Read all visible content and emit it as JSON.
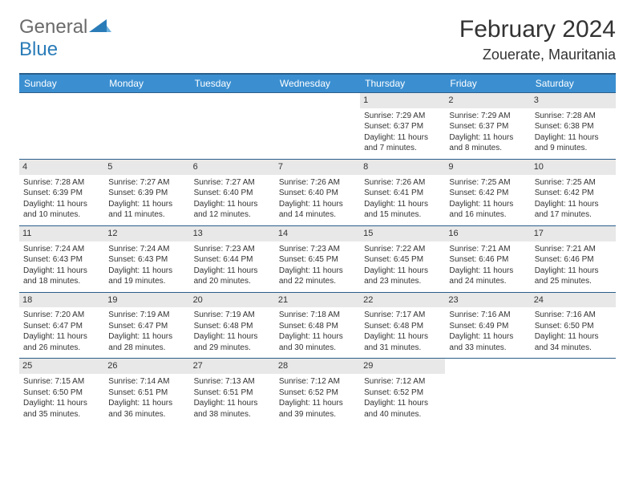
{
  "logo": {
    "general": "General",
    "blue": "Blue"
  },
  "title": "February 2024",
  "location": "Zouerate, Mauritania",
  "colors": {
    "header_bg": "#3b8fd1",
    "header_border": "#2a5e8a",
    "daynum_bg": "#e8e8e8",
    "logo_gray": "#6b6b6b",
    "logo_blue": "#2a7cb8",
    "text": "#333333",
    "bg": "#ffffff"
  },
  "weekdays": [
    "Sunday",
    "Monday",
    "Tuesday",
    "Wednesday",
    "Thursday",
    "Friday",
    "Saturday"
  ],
  "weeks": [
    [
      null,
      null,
      null,
      null,
      {
        "day": "1",
        "sunrise": "Sunrise: 7:29 AM",
        "sunset": "Sunset: 6:37 PM",
        "daylight": "Daylight: 11 hours and 7 minutes."
      },
      {
        "day": "2",
        "sunrise": "Sunrise: 7:29 AM",
        "sunset": "Sunset: 6:37 PM",
        "daylight": "Daylight: 11 hours and 8 minutes."
      },
      {
        "day": "3",
        "sunrise": "Sunrise: 7:28 AM",
        "sunset": "Sunset: 6:38 PM",
        "daylight": "Daylight: 11 hours and 9 minutes."
      }
    ],
    [
      {
        "day": "4",
        "sunrise": "Sunrise: 7:28 AM",
        "sunset": "Sunset: 6:39 PM",
        "daylight": "Daylight: 11 hours and 10 minutes."
      },
      {
        "day": "5",
        "sunrise": "Sunrise: 7:27 AM",
        "sunset": "Sunset: 6:39 PM",
        "daylight": "Daylight: 11 hours and 11 minutes."
      },
      {
        "day": "6",
        "sunrise": "Sunrise: 7:27 AM",
        "sunset": "Sunset: 6:40 PM",
        "daylight": "Daylight: 11 hours and 12 minutes."
      },
      {
        "day": "7",
        "sunrise": "Sunrise: 7:26 AM",
        "sunset": "Sunset: 6:40 PM",
        "daylight": "Daylight: 11 hours and 14 minutes."
      },
      {
        "day": "8",
        "sunrise": "Sunrise: 7:26 AM",
        "sunset": "Sunset: 6:41 PM",
        "daylight": "Daylight: 11 hours and 15 minutes."
      },
      {
        "day": "9",
        "sunrise": "Sunrise: 7:25 AM",
        "sunset": "Sunset: 6:42 PM",
        "daylight": "Daylight: 11 hours and 16 minutes."
      },
      {
        "day": "10",
        "sunrise": "Sunrise: 7:25 AM",
        "sunset": "Sunset: 6:42 PM",
        "daylight": "Daylight: 11 hours and 17 minutes."
      }
    ],
    [
      {
        "day": "11",
        "sunrise": "Sunrise: 7:24 AM",
        "sunset": "Sunset: 6:43 PM",
        "daylight": "Daylight: 11 hours and 18 minutes."
      },
      {
        "day": "12",
        "sunrise": "Sunrise: 7:24 AM",
        "sunset": "Sunset: 6:43 PM",
        "daylight": "Daylight: 11 hours and 19 minutes."
      },
      {
        "day": "13",
        "sunrise": "Sunrise: 7:23 AM",
        "sunset": "Sunset: 6:44 PM",
        "daylight": "Daylight: 11 hours and 20 minutes."
      },
      {
        "day": "14",
        "sunrise": "Sunrise: 7:23 AM",
        "sunset": "Sunset: 6:45 PM",
        "daylight": "Daylight: 11 hours and 22 minutes."
      },
      {
        "day": "15",
        "sunrise": "Sunrise: 7:22 AM",
        "sunset": "Sunset: 6:45 PM",
        "daylight": "Daylight: 11 hours and 23 minutes."
      },
      {
        "day": "16",
        "sunrise": "Sunrise: 7:21 AM",
        "sunset": "Sunset: 6:46 PM",
        "daylight": "Daylight: 11 hours and 24 minutes."
      },
      {
        "day": "17",
        "sunrise": "Sunrise: 7:21 AM",
        "sunset": "Sunset: 6:46 PM",
        "daylight": "Daylight: 11 hours and 25 minutes."
      }
    ],
    [
      {
        "day": "18",
        "sunrise": "Sunrise: 7:20 AM",
        "sunset": "Sunset: 6:47 PM",
        "daylight": "Daylight: 11 hours and 26 minutes."
      },
      {
        "day": "19",
        "sunrise": "Sunrise: 7:19 AM",
        "sunset": "Sunset: 6:47 PM",
        "daylight": "Daylight: 11 hours and 28 minutes."
      },
      {
        "day": "20",
        "sunrise": "Sunrise: 7:19 AM",
        "sunset": "Sunset: 6:48 PM",
        "daylight": "Daylight: 11 hours and 29 minutes."
      },
      {
        "day": "21",
        "sunrise": "Sunrise: 7:18 AM",
        "sunset": "Sunset: 6:48 PM",
        "daylight": "Daylight: 11 hours and 30 minutes."
      },
      {
        "day": "22",
        "sunrise": "Sunrise: 7:17 AM",
        "sunset": "Sunset: 6:48 PM",
        "daylight": "Daylight: 11 hours and 31 minutes."
      },
      {
        "day": "23",
        "sunrise": "Sunrise: 7:16 AM",
        "sunset": "Sunset: 6:49 PM",
        "daylight": "Daylight: 11 hours and 33 minutes."
      },
      {
        "day": "24",
        "sunrise": "Sunrise: 7:16 AM",
        "sunset": "Sunset: 6:50 PM",
        "daylight": "Daylight: 11 hours and 34 minutes."
      }
    ],
    [
      {
        "day": "25",
        "sunrise": "Sunrise: 7:15 AM",
        "sunset": "Sunset: 6:50 PM",
        "daylight": "Daylight: 11 hours and 35 minutes."
      },
      {
        "day": "26",
        "sunrise": "Sunrise: 7:14 AM",
        "sunset": "Sunset: 6:51 PM",
        "daylight": "Daylight: 11 hours and 36 minutes."
      },
      {
        "day": "27",
        "sunrise": "Sunrise: 7:13 AM",
        "sunset": "Sunset: 6:51 PM",
        "daylight": "Daylight: 11 hours and 38 minutes."
      },
      {
        "day": "28",
        "sunrise": "Sunrise: 7:12 AM",
        "sunset": "Sunset: 6:52 PM",
        "daylight": "Daylight: 11 hours and 39 minutes."
      },
      {
        "day": "29",
        "sunrise": "Sunrise: 7:12 AM",
        "sunset": "Sunset: 6:52 PM",
        "daylight": "Daylight: 11 hours and 40 minutes."
      },
      null,
      null
    ]
  ]
}
